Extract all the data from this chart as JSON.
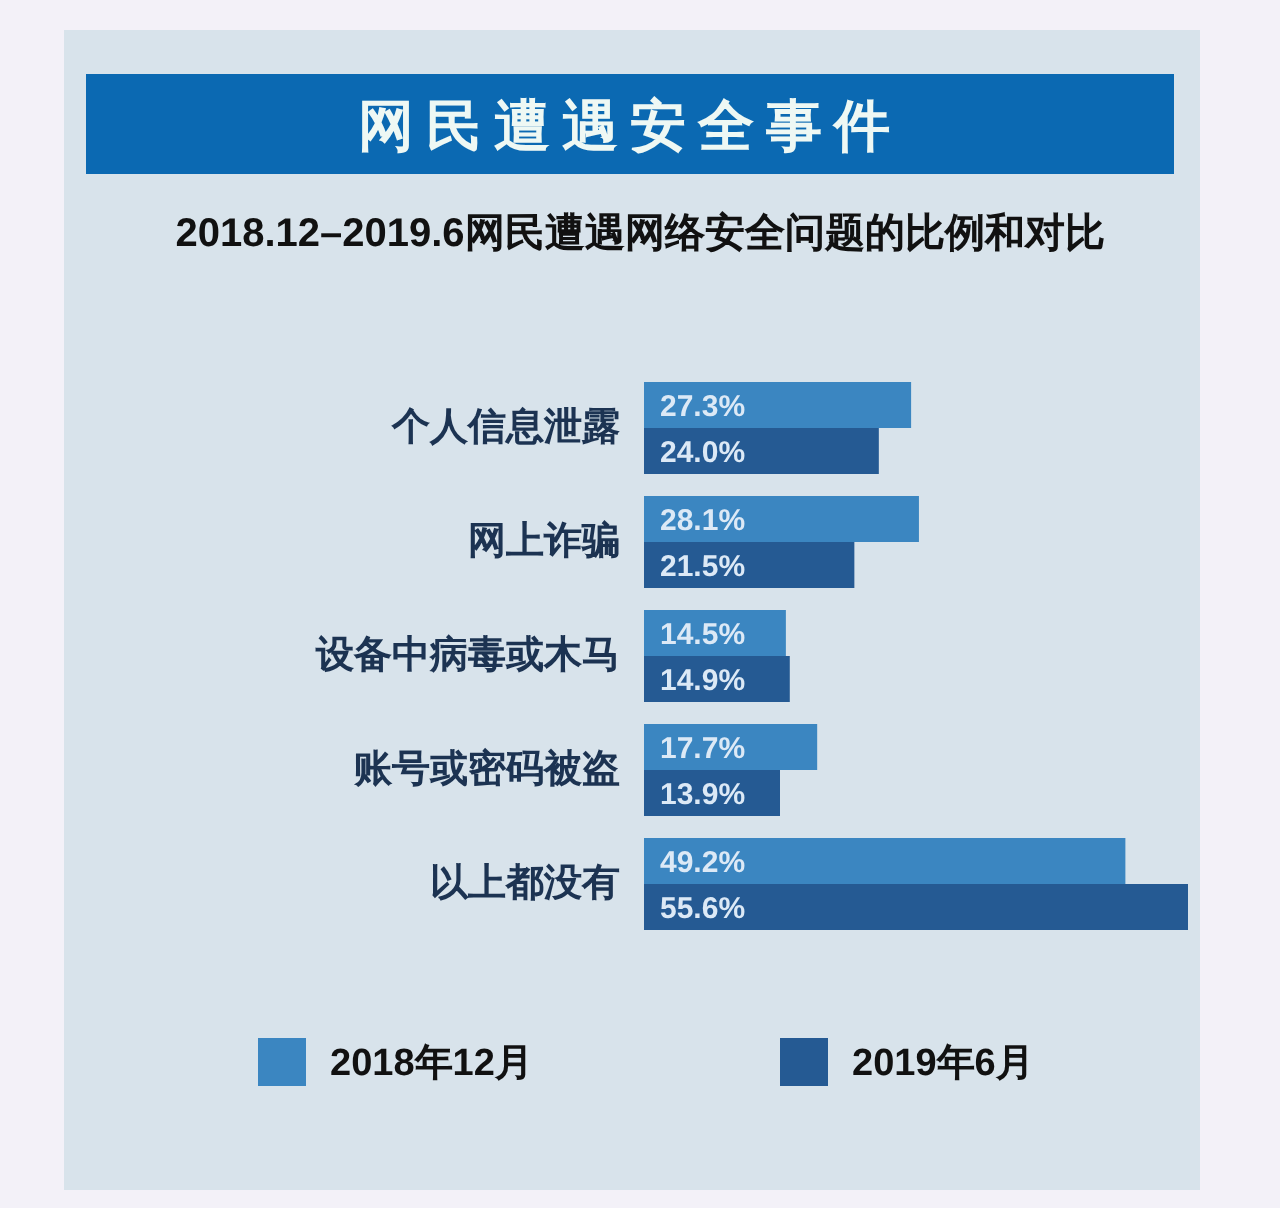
{
  "chart_data": {
    "type": "bar",
    "orientation": "horizontal",
    "title": "网民遭遇安全事件",
    "subtitle": "2018.12–2019.6网民遭遇网络安全问题的比例和对比",
    "categories": [
      "个人信息泄露",
      "网上诈骗",
      "设备中病毒或木马",
      "账号或密码被盗",
      "以上都没有"
    ],
    "series": [
      {
        "name": "2018年12月",
        "color": "#3b86c1",
        "values": [
          27.3,
          28.1,
          14.5,
          17.7,
          49.2
        ],
        "value_labels": [
          "27.3%",
          "28.1%",
          "14.5%",
          "17.7%",
          "49.2%"
        ]
      },
      {
        "name": "2019年6月",
        "color": "#255a93",
        "values": [
          24.0,
          21.5,
          14.9,
          13.9,
          55.6
        ],
        "value_labels": [
          "24.0%",
          "21.5%",
          "14.9%",
          "13.9%",
          "55.6%"
        ]
      }
    ],
    "legend": "bottom"
  }
}
